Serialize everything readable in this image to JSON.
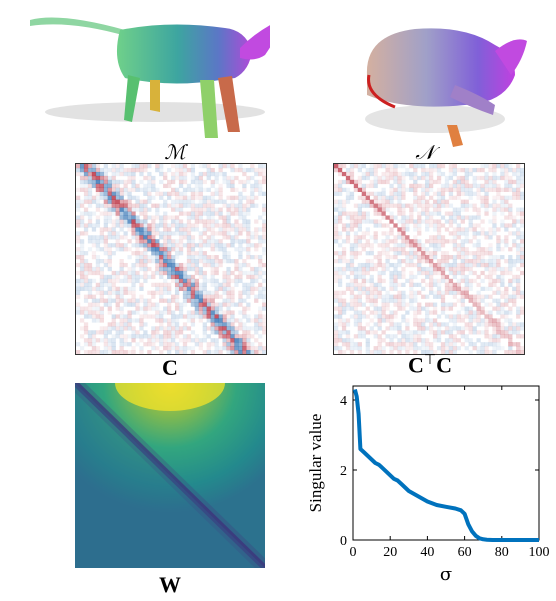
{
  "labels": {
    "shape_m": "ℳ",
    "shape_n": "𝒩",
    "matrix_c": "C",
    "matrix_ctc_base": "C",
    "matrix_ctc_sup": "⊤",
    "matrix_ctc_tail": "C",
    "matrix_w": "W"
  },
  "colors": {
    "heat_pos": "#b2182b",
    "heat_neg": "#2166ac",
    "line": "#0072bd"
  },
  "chart_data": {
    "type": "line",
    "xlabel": "σ",
    "ylabel": "Singular value",
    "xlim": [
      0,
      100
    ],
    "ylim": [
      0,
      4.4
    ],
    "xticks": [
      "0",
      "20",
      "40",
      "60",
      "80",
      "100"
    ],
    "yticks": [
      "0",
      "2",
      "4"
    ],
    "series": [
      {
        "x": [
          1,
          2,
          3,
          4,
          6,
          8,
          10,
          12,
          14,
          16,
          18,
          20,
          22,
          24,
          26,
          28,
          30,
          35,
          40,
          45,
          50,
          55,
          58,
          60,
          62,
          64,
          66,
          68,
          70,
          72,
          75,
          80,
          90,
          100
        ],
        "y": [
          4.3,
          4.1,
          3.6,
          2.6,
          2.5,
          2.4,
          2.3,
          2.2,
          2.15,
          2.05,
          1.95,
          1.85,
          1.75,
          1.7,
          1.6,
          1.5,
          1.4,
          1.25,
          1.1,
          1.0,
          0.95,
          0.9,
          0.85,
          0.75,
          0.45,
          0.25,
          0.12,
          0.05,
          0.02,
          0.01,
          0,
          0,
          0,
          0
        ]
      }
    ]
  }
}
